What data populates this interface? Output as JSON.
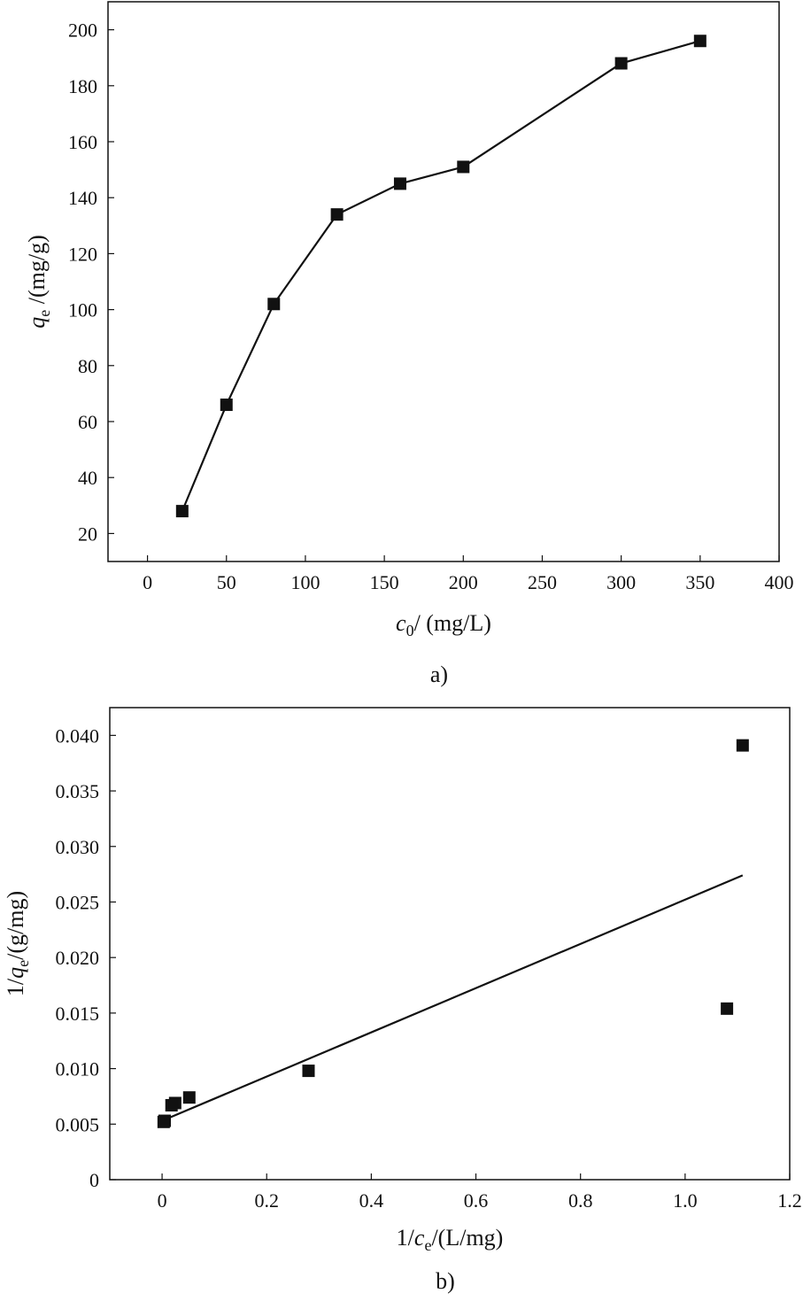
{
  "chart_data": [
    {
      "id": "a",
      "type": "line",
      "panel_label": "a)",
      "xlabel": {
        "var": "c",
        "sub": "0",
        "unit": "/ (mg/L)"
      },
      "ylabel": {
        "var": "q",
        "sub": "e",
        "unit": " /(mg/g)"
      },
      "xlim": [
        -25,
        400
      ],
      "ylim": [
        10,
        210
      ],
      "xticks": [
        0,
        50,
        100,
        150,
        200,
        250,
        300,
        350,
        400
      ],
      "yticks": [
        20,
        40,
        60,
        80,
        100,
        120,
        140,
        160,
        180,
        200
      ],
      "grid": false,
      "series": [
        {
          "x": [
            22,
            50,
            80,
            120,
            160,
            200,
            300,
            350
          ],
          "y": [
            28,
            66,
            102,
            134,
            145,
            151,
            188,
            196
          ]
        }
      ]
    },
    {
      "id": "b",
      "type": "scatter",
      "panel_label": "b)",
      "xlabel": {
        "pre": "1/",
        "var": "c",
        "sub": "e",
        "unit": "/(L/mg)"
      },
      "ylabel": {
        "pre": "1/",
        "var": "q",
        "sub": "e",
        "unit": "/(g/mg)"
      },
      "xlim": [
        -0.1,
        1.2
      ],
      "ylim": [
        0,
        0.0425
      ],
      "xticks": [
        0,
        0.2,
        0.4,
        0.6,
        0.8,
        1.0,
        1.2
      ],
      "xtick_labels": [
        "0",
        "0.2",
        "0.4",
        "0.6",
        "0.8",
        "1.0",
        "1.2"
      ],
      "yticks": [
        0,
        0.005,
        0.01,
        0.015,
        0.02,
        0.025,
        0.03,
        0.035,
        0.04
      ],
      "ytick_labels": [
        "0",
        "0.005",
        "0.010",
        "0.015",
        "0.020",
        "0.025",
        "0.030",
        "0.035",
        "0.040"
      ],
      "grid": false,
      "series": [
        {
          "x": [
            0.003,
            0.005,
            0.018,
            0.025,
            0.052,
            0.28,
            1.08,
            1.11
          ],
          "y": [
            0.0052,
            0.0053,
            0.0067,
            0.0069,
            0.0074,
            0.0098,
            0.0154,
            0.0391
          ]
        }
      ],
      "fit_line": {
        "x": [
          0.005,
          1.11
        ],
        "y": [
          0.0054,
          0.0274
        ]
      }
    }
  ]
}
